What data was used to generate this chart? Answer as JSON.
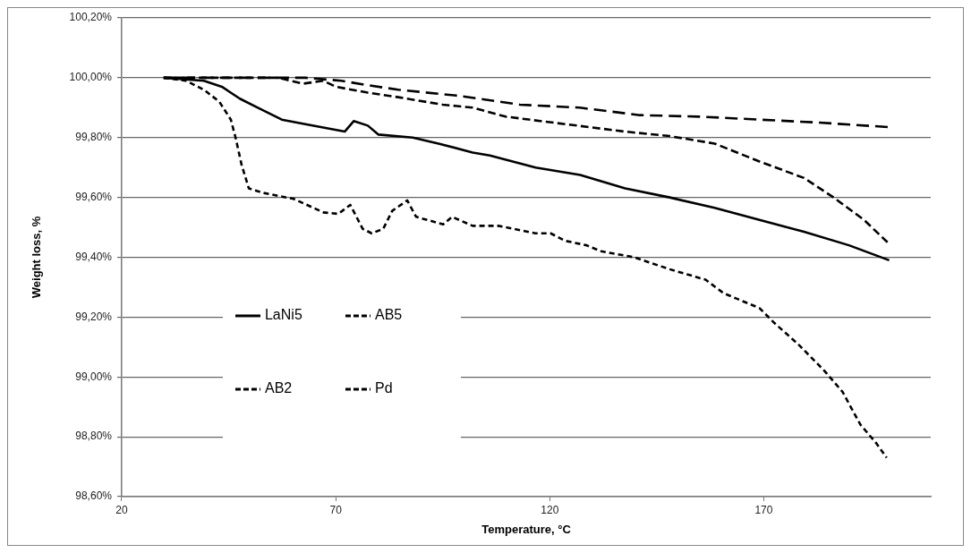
{
  "chart_data": {
    "type": "line",
    "xlabel": "Temperature, °C",
    "ylabel": "Weight loss, %",
    "xlim": [
      20,
      209
    ],
    "xticks": [
      20,
      70,
      120,
      170
    ],
    "ylim": [
      98.6,
      100.2
    ],
    "yticks": [
      {
        "value": 98.6,
        "label": "98,60%"
      },
      {
        "value": 98.8,
        "label": "98,80%"
      },
      {
        "value": 99.0,
        "label": "99,00%"
      },
      {
        "value": 99.2,
        "label": "99,20%"
      },
      {
        "value": 99.4,
        "label": "99,40%"
      },
      {
        "value": 99.6,
        "label": "99,60%"
      },
      {
        "value": 99.8,
        "label": "99,80%"
      },
      {
        "value": 100.0,
        "label": "100,00%"
      },
      {
        "value": 100.2,
        "label": "100,20%"
      }
    ],
    "grid": "y",
    "legend": "bottom left",
    "marker": "none",
    "series": [
      {
        "name": "LaNi5",
        "color": "#000000",
        "line_style": "solid",
        "x": [
          29.8,
          39.2,
          43.4,
          47.6,
          51.8,
          57.4,
          62.9,
          72.1,
          74.2,
          77.5,
          80.0,
          88.0,
          94.0,
          102.0,
          106.0,
          116.7,
          127.1,
          137.6,
          148.0,
          158.5,
          169.0,
          179.4,
          189.9,
          199.3
        ],
        "values": [
          100.0,
          99.99,
          99.97,
          99.93,
          99.9,
          99.86,
          99.845,
          99.82,
          99.855,
          99.84,
          99.81,
          99.8,
          99.78,
          99.75,
          99.74,
          99.7,
          99.675,
          99.63,
          99.6,
          99.565,
          99.525,
          99.485,
          99.44,
          99.39
        ]
      },
      {
        "name": "AB5",
        "color": "#000000",
        "line_style": "dashed",
        "x": [
          29.8,
          62.9,
          71.3,
          77.5,
          84.6,
          91.5,
          98.5,
          113.0,
          127.0,
          141.0,
          155.0,
          169.0,
          183.0,
          199.3
        ],
        "values": [
          100.0,
          100.0,
          99.99,
          99.975,
          99.96,
          99.95,
          99.94,
          99.91,
          99.9,
          99.875,
          99.87,
          99.86,
          99.85,
          99.835
        ]
      },
      {
        "name": "AB2",
        "color": "#000000",
        "line_style": "dashed",
        "x": [
          29.8,
          56.6,
          62.3,
          67.1,
          70.0,
          77.5,
          84.6,
          95.0,
          102.0,
          109.7,
          123.6,
          137.6,
          148.0,
          158.5,
          169.0,
          179.4,
          186.3,
          193.4,
          198.9
        ],
        "values": [
          100.0,
          100.0,
          99.98,
          99.99,
          99.97,
          99.95,
          99.935,
          99.91,
          99.9,
          99.87,
          99.845,
          99.82,
          99.805,
          99.78,
          99.72,
          99.665,
          99.6,
          99.525,
          99.45
        ]
      },
      {
        "name": "Pd",
        "color": "#000000",
        "line_style": "dotted",
        "x": [
          29.8,
          35.0,
          39.2,
          42.8,
          45.5,
          46.6,
          48.0,
          49.7,
          53.2,
          60.2,
          67.1,
          70.6,
          73.4,
          76.3,
          78.4,
          81.1,
          83.2,
          86.7,
          88.8,
          95.1,
          97.2,
          102.0,
          108.0,
          116.7,
          120.2,
          123.6,
          128.6,
          132.0,
          139.7,
          148.0,
          156.4,
          160.6,
          169.0,
          172.5,
          178.0,
          184.2,
          188.4,
          192.6,
          196.2,
          198.7
        ],
        "values": [
          100.0,
          99.99,
          99.96,
          99.92,
          99.86,
          99.8,
          99.71,
          99.63,
          99.615,
          99.595,
          99.55,
          99.545,
          99.575,
          99.495,
          99.48,
          99.495,
          99.555,
          99.59,
          99.535,
          99.51,
          99.535,
          99.505,
          99.505,
          99.48,
          99.48,
          99.455,
          99.44,
          99.42,
          99.4,
          99.36,
          99.325,
          99.28,
          99.23,
          99.18,
          99.11,
          99.02,
          98.95,
          98.84,
          98.78,
          98.73
        ]
      }
    ]
  }
}
